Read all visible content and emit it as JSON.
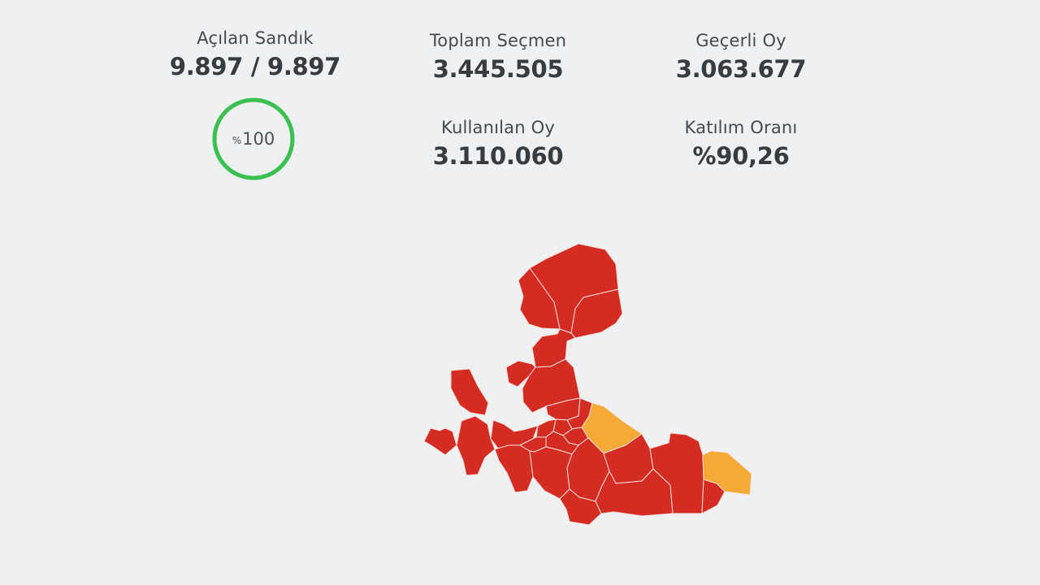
{
  "stats": {
    "ballots": {
      "label": "Açılan Sandık",
      "value": "9.897 / 9.897"
    },
    "voters": {
      "label": "Toplam Seçmen",
      "value": "3.445.505"
    },
    "valid": {
      "label": "Geçerli Oy",
      "value": "3.063.677"
    },
    "cast": {
      "label": "Kullanılan Oy",
      "value": "3.110.060"
    },
    "turnout": {
      "label": "Katılım Oranı",
      "value": "%90,26"
    }
  },
  "progress": {
    "sign": "%",
    "value": "100",
    "fraction": 1.0,
    "color": "#38c151"
  },
  "map": {
    "colors": {
      "primary": "#d42b22",
      "secondary": "#f5aa35",
      "border": "#f6e0dc"
    },
    "legend_note": ""
  }
}
